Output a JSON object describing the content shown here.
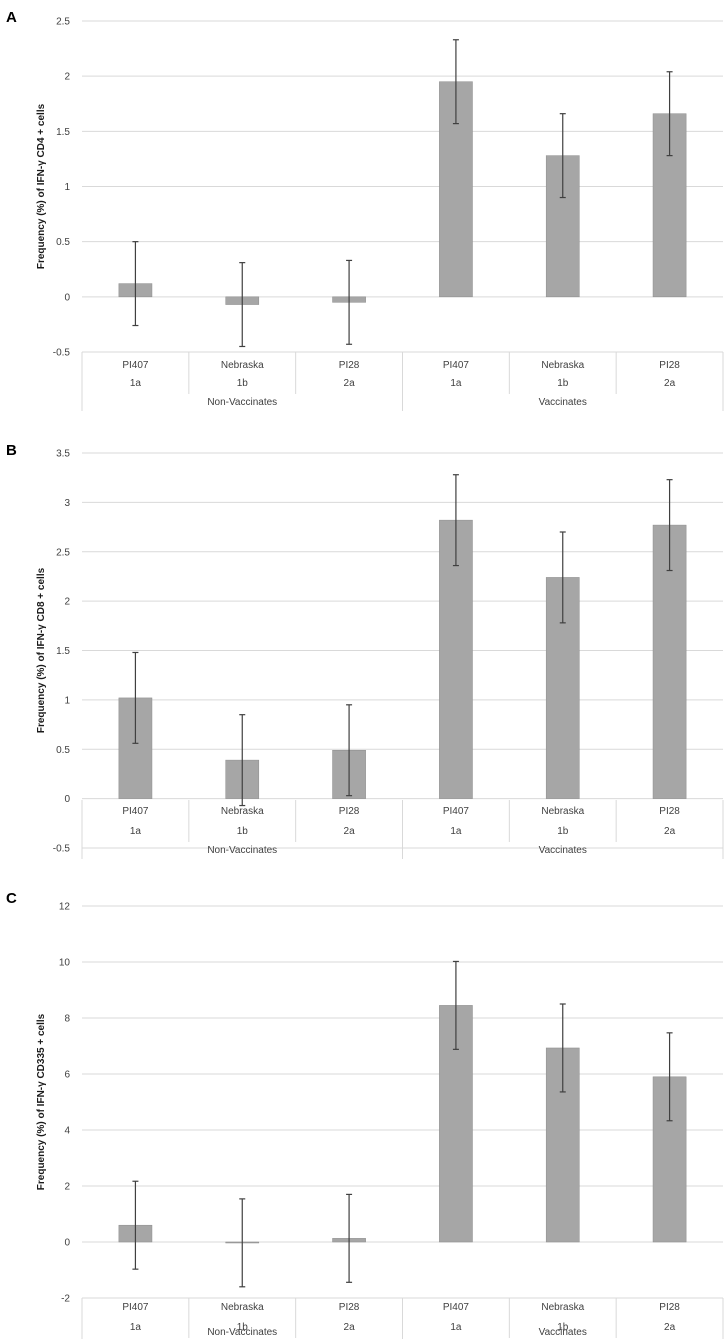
{
  "colors": {
    "bar": "#a6a6a6",
    "bar_edge": "#8c8c8c",
    "grid": "#d9d9d9",
    "error_bar": "#404040",
    "text": "#404040"
  },
  "chart_data": [
    {
      "type": "bar",
      "panel_label": "A",
      "ylabel": "Frequency (%) of IFN-γ CD4 + cells",
      "ylim": [
        -0.5,
        2.5
      ],
      "yticks": [
        -0.5,
        0,
        0.5,
        1,
        1.5,
        2,
        2.5
      ],
      "ytick_labels": [
        "-0.5",
        "0",
        "0.5",
        "1",
        "1.5",
        "2",
        "2.5"
      ],
      "grid": true,
      "categories": [
        "PI407",
        "Nebraska",
        "PI28",
        "PI407",
        "Nebraska",
        "PI28"
      ],
      "subcategories": [
        "1a",
        "1b",
        "2a",
        "1a",
        "1b",
        "2a"
      ],
      "groups": [
        {
          "label": "Non-Vaccinates",
          "span": 3
        },
        {
          "label": "Vaccinates",
          "span": 3
        }
      ],
      "values": [
        0.12,
        -0.07,
        -0.05,
        1.95,
        1.28,
        1.66
      ],
      "error": [
        0.38,
        0.38,
        0.38,
        0.38,
        0.38,
        0.38
      ]
    },
    {
      "type": "bar",
      "panel_label": "B",
      "ylabel": "Frequency (%) of IFN-γ CD8 + cells",
      "ylim": [
        -0.5,
        3.5
      ],
      "yticks": [
        -0.5,
        0,
        0.5,
        1,
        1.5,
        2,
        2.5,
        3,
        3.5
      ],
      "ytick_labels": [
        "-0.5",
        "0",
        "0.5",
        "1",
        "1.5",
        "2",
        "2.5",
        "3",
        "3.5"
      ],
      "grid": true,
      "categories": [
        "PI407",
        "Nebraska",
        "PI28",
        "PI407",
        "Nebraska",
        "PI28"
      ],
      "subcategories": [
        "1a",
        "1b",
        "2a",
        "1a",
        "1b",
        "2a"
      ],
      "groups": [
        {
          "label": "Non-Vaccinates",
          "span": 3
        },
        {
          "label": "Vaccinates",
          "span": 3
        }
      ],
      "values": [
        1.02,
        0.39,
        0.49,
        2.82,
        2.24,
        2.77
      ],
      "error": [
        0.46,
        0.46,
        0.46,
        0.46,
        0.46,
        0.46
      ]
    },
    {
      "type": "bar",
      "panel_label": "C",
      "ylabel": "Frequency (%) of IFN-γ CD335 + cells",
      "ylim": [
        -2,
        12
      ],
      "yticks": [
        -2,
        0,
        2,
        4,
        6,
        8,
        10,
        12
      ],
      "ytick_labels": [
        "-2",
        "0",
        "2",
        "4",
        "6",
        "8",
        "10",
        "12"
      ],
      "grid": true,
      "categories": [
        "PI407",
        "Nebraska",
        "PI28",
        "PI407",
        "Nebraska",
        "PI28"
      ],
      "subcategories": [
        "1a",
        "1b",
        "2a",
        "1a",
        "1b",
        "2a"
      ],
      "groups": [
        {
          "label": "Non-Vaccinates",
          "span": 3
        },
        {
          "label": "Vaccinates",
          "span": 3
        }
      ],
      "values": [
        0.6,
        -0.03,
        0.13,
        8.45,
        6.93,
        5.9
      ],
      "error": [
        1.57,
        1.57,
        1.57,
        1.57,
        1.57,
        1.57
      ]
    }
  ]
}
